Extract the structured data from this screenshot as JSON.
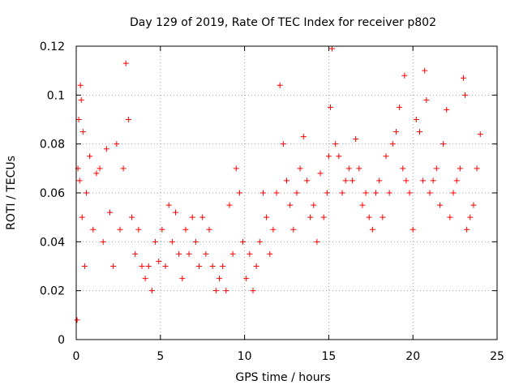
{
  "chart_data": {
    "type": "scatter",
    "title": "Day 129 of 2019, Rate Of TEC Index for receiver p802",
    "xlabel": "GPS time / hours",
    "ylabel": "ROTI / TECUs",
    "xlim": [
      0,
      25
    ],
    "ylim": [
      0,
      0.12
    ],
    "xticks": [
      "0",
      "5",
      "10",
      "15",
      "20",
      "25"
    ],
    "yticks": [
      "0",
      "0.02",
      "0.04",
      "0.06",
      "0.08",
      "0.1",
      "0.12"
    ],
    "grid": true,
    "marker": "plus",
    "color": "#ff0000",
    "series": [
      {
        "x": [
          0.05,
          0.1,
          0.15,
          0.2,
          0.25,
          0.3,
          0.35,
          0.4,
          0.5,
          0.6,
          0.8,
          1.0,
          1.2,
          1.4,
          1.6,
          1.8,
          2.0,
          2.2,
          2.4,
          2.6,
          2.8,
          2.95,
          3.1,
          3.3,
          3.5,
          3.7,
          3.9,
          4.1,
          4.3,
          4.5,
          4.7,
          4.9,
          5.1,
          5.3,
          5.5,
          5.7,
          5.9,
          6.1,
          6.3,
          6.5,
          6.7,
          6.9,
          7.1,
          7.3,
          7.5,
          7.7,
          7.9,
          8.1,
          8.3,
          8.5,
          8.7,
          8.9,
          9.1,
          9.3,
          9.5,
          9.7,
          9.9,
          10.1,
          10.3,
          10.5,
          10.7,
          10.9,
          11.1,
          11.3,
          11.5,
          11.7,
          11.9,
          12.1,
          12.3,
          12.5,
          12.7,
          12.9,
          13.1,
          13.3,
          13.5,
          13.7,
          13.9,
          14.1,
          14.3,
          14.5,
          14.7,
          14.9,
          15.0,
          15.1,
          15.2,
          15.4,
          15.6,
          15.8,
          16.0,
          16.2,
          16.4,
          16.6,
          16.8,
          17.0,
          17.2,
          17.4,
          17.6,
          17.8,
          18.0,
          18.2,
          18.4,
          18.6,
          18.8,
          19.0,
          19.2,
          19.4,
          19.5,
          19.6,
          19.8,
          20.0,
          20.2,
          20.4,
          20.6,
          20.7,
          20.8,
          21.0,
          21.2,
          21.4,
          21.6,
          21.8,
          22.0,
          22.2,
          22.4,
          22.6,
          22.8,
          23.0,
          23.1,
          23.2,
          23.4,
          23.6,
          23.8,
          24.0
        ],
        "y": [
          0.008,
          0.07,
          0.09,
          0.065,
          0.104,
          0.098,
          0.05,
          0.085,
          0.03,
          0.06,
          0.075,
          0.045,
          0.068,
          0.07,
          0.04,
          0.078,
          0.052,
          0.03,
          0.08,
          0.045,
          0.07,
          0.113,
          0.09,
          0.05,
          0.035,
          0.045,
          0.03,
          0.025,
          0.03,
          0.02,
          0.04,
          0.032,
          0.045,
          0.03,
          0.055,
          0.04,
          0.052,
          0.035,
          0.025,
          0.045,
          0.035,
          0.05,
          0.04,
          0.03,
          0.05,
          0.035,
          0.045,
          0.03,
          0.02,
          0.025,
          0.03,
          0.02,
          0.055,
          0.035,
          0.07,
          0.06,
          0.04,
          0.025,
          0.035,
          0.02,
          0.03,
          0.04,
          0.06,
          0.05,
          0.035,
          0.045,
          0.06,
          0.104,
          0.08,
          0.065,
          0.055,
          0.045,
          0.06,
          0.07,
          0.083,
          0.065,
          0.05,
          0.055,
          0.04,
          0.068,
          0.05,
          0.06,
          0.075,
          0.095,
          0.119,
          0.08,
          0.075,
          0.06,
          0.065,
          0.07,
          0.065,
          0.082,
          0.07,
          0.055,
          0.06,
          0.05,
          0.045,
          0.06,
          0.065,
          0.05,
          0.075,
          0.06,
          0.08,
          0.085,
          0.095,
          0.07,
          0.108,
          0.065,
          0.06,
          0.045,
          0.09,
          0.085,
          0.065,
          0.11,
          0.098,
          0.06,
          0.065,
          0.07,
          0.055,
          0.08,
          0.094,
          0.05,
          0.06,
          0.065,
          0.07,
          0.107,
          0.1,
          0.045,
          0.05,
          0.055,
          0.07,
          0.084
        ]
      }
    ]
  }
}
